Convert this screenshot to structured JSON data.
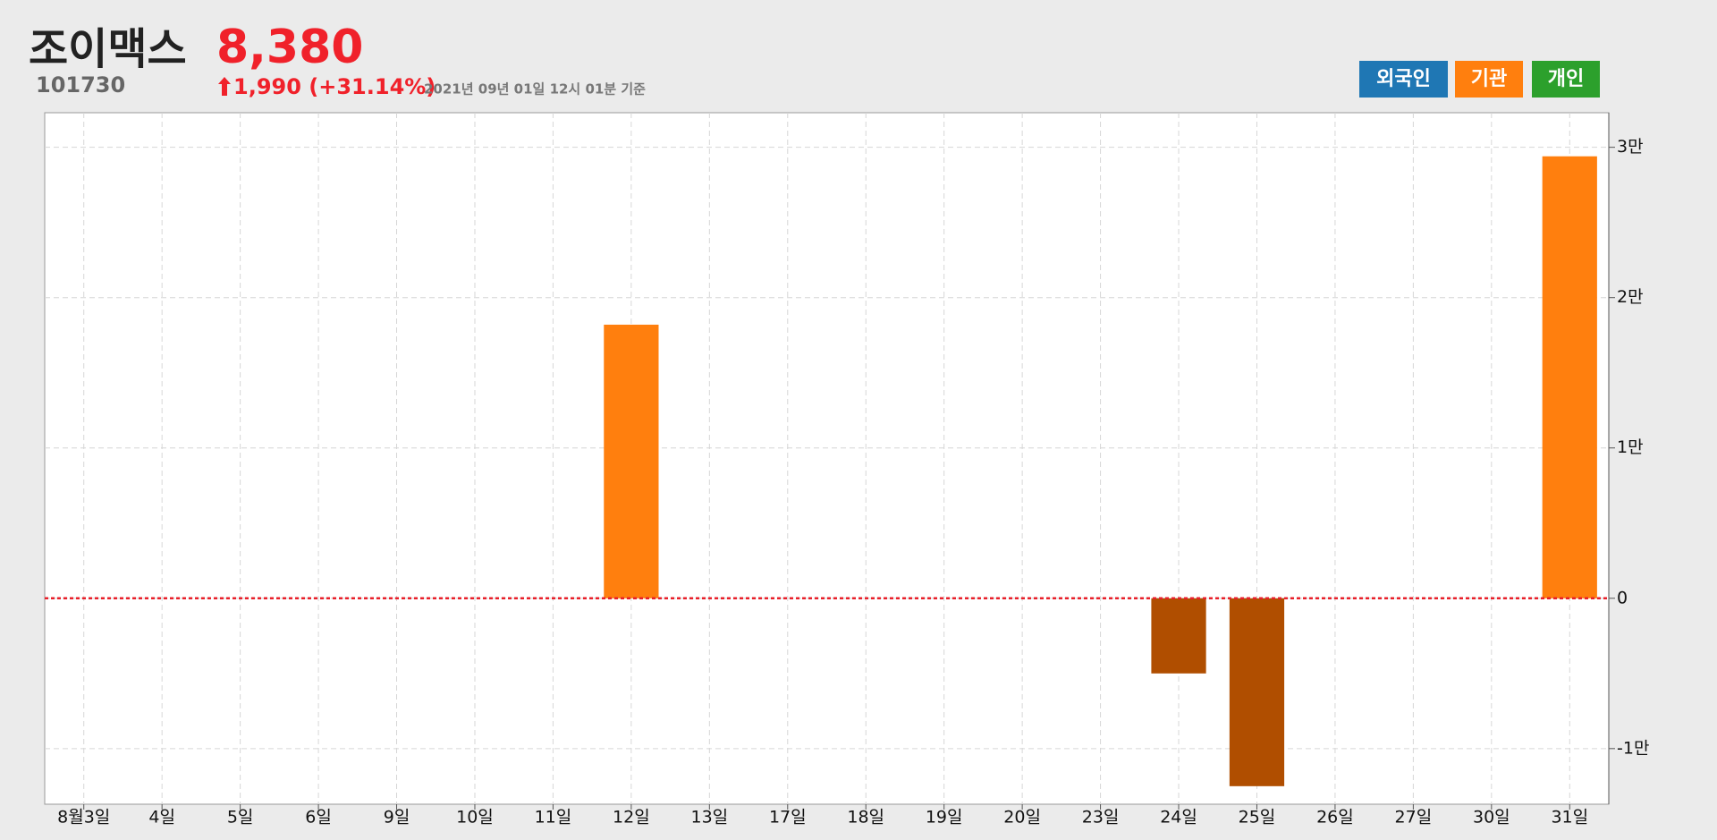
{
  "header": {
    "title": "조이맥스",
    "price": "8,380",
    "code": "101730",
    "change": "1,990 (+31.14%)",
    "timestamp": "2021년 09년 01일 12시 01분 기준"
  },
  "chart_data": {
    "type": "bar",
    "categories": [
      "8월3일",
      "4일",
      "5일",
      "6일",
      "9일",
      "10일",
      "11일",
      "12일",
      "13일",
      "17일",
      "18일",
      "19일",
      "20일",
      "23일",
      "24일",
      "25일",
      "26일",
      "27일",
      "30일",
      "31일"
    ],
    "values": [
      0,
      0,
      0,
      0,
      0,
      0,
      0,
      18200,
      0,
      0,
      0,
      0,
      0,
      0,
      -5000,
      -12500,
      0,
      0,
      0,
      29400
    ],
    "color": "#ff7f0e",
    "negative_color": "#b04e00",
    "ylim": [
      -13700,
      32300
    ],
    "yticks": [
      {
        "value": -10000,
        "label": "-1만"
      },
      0,
      {
        "value": 10000,
        "label": "1만"
      },
      {
        "value": 20000,
        "label": "2만"
      },
      {
        "value": 30000,
        "label": "3만"
      }
    ],
    "grid": true,
    "zero_line_color": "#e8202a",
    "legend": [
      {
        "name": "외국인",
        "color": "#1f77b4"
      },
      {
        "name": "기관",
        "color": "#ff7f0e"
      },
      {
        "name": "개인",
        "color": "#2ca02c"
      }
    ]
  }
}
